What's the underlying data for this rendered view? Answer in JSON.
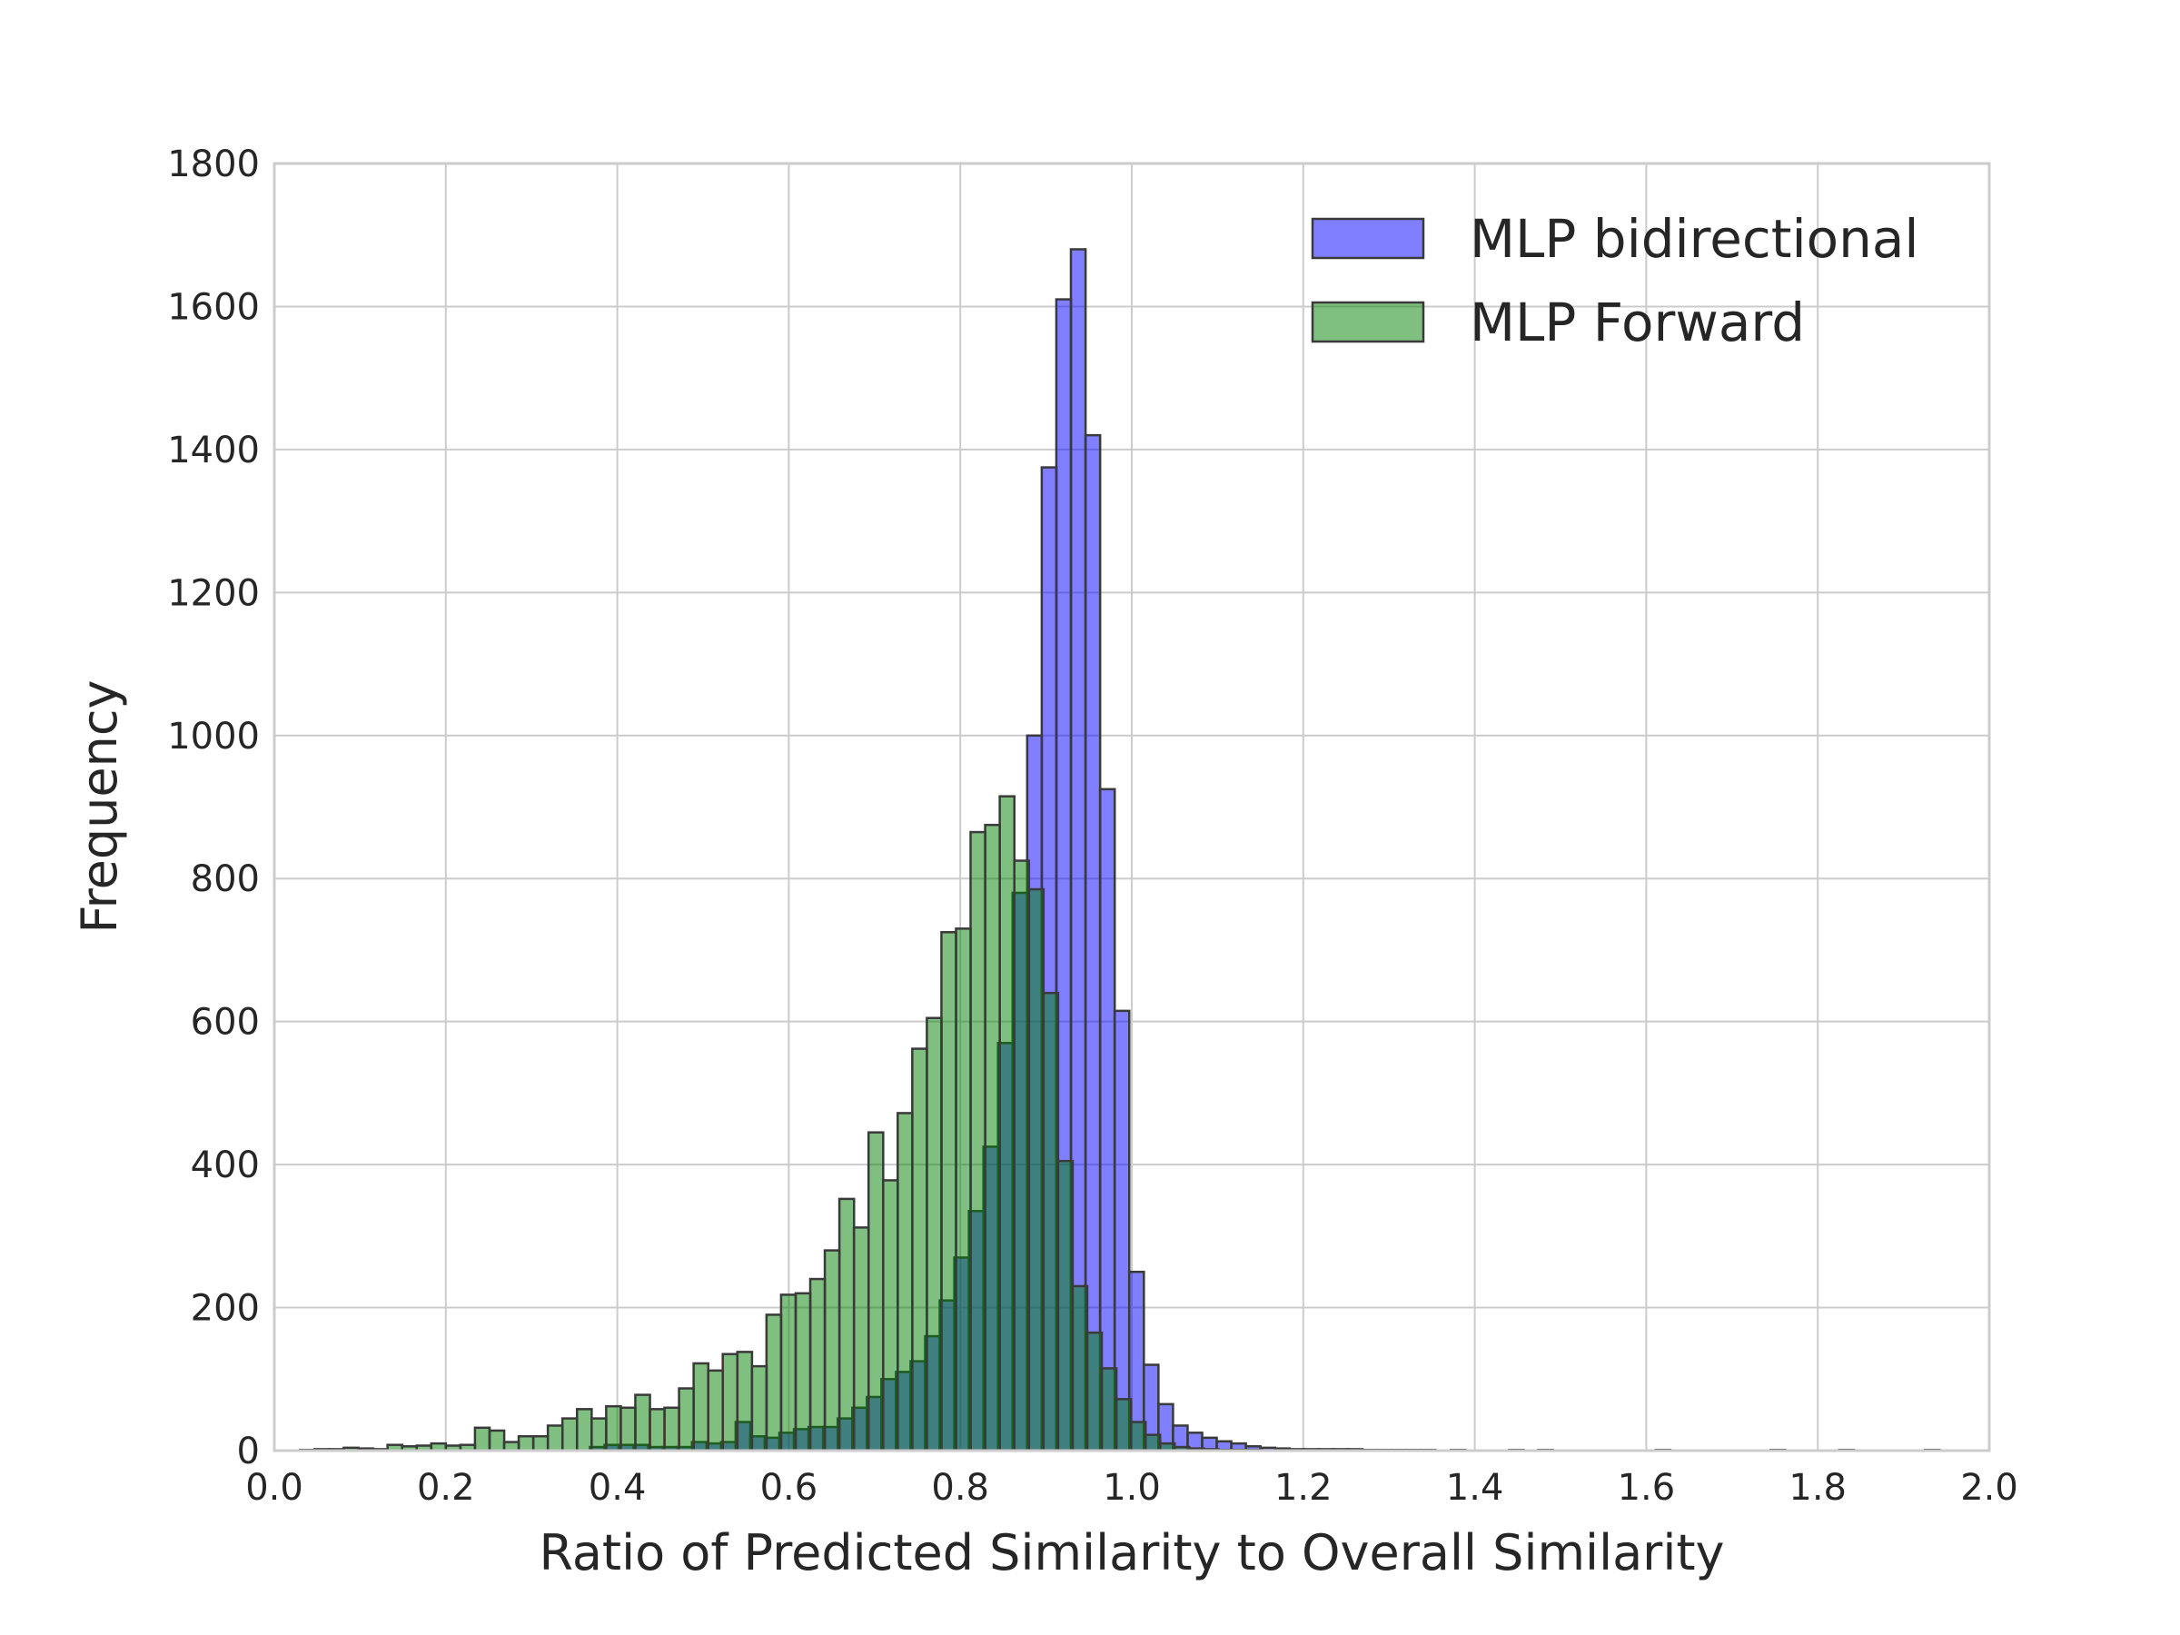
{
  "chart_data": {
    "type": "bar",
    "subtype": "overlaid-histogram",
    "title": "",
    "xlabel": "Ratio of Predicted Similarity to Overall Similarity",
    "ylabel": "Frequency",
    "xlim": [
      0.0,
      2.0
    ],
    "ylim": [
      0,
      1800
    ],
    "grid": true,
    "legend_position": "top-right",
    "bin_width": 0.0171,
    "x_ticks": [
      "0.0",
      "0.2",
      "0.4",
      "0.6",
      "0.8",
      "1.0",
      "1.2",
      "1.4",
      "1.6",
      "1.8",
      "2.0"
    ],
    "y_ticks": [
      "0",
      "200",
      "400",
      "600",
      "800",
      "1000",
      "1200",
      "1400",
      "1600",
      "1800"
    ],
    "series": [
      {
        "name": "MLP bidirectional",
        "color": "#0000ff",
        "opacity": 0.5,
        "bins": [
          [
            0.368,
            5
          ],
          [
            0.385,
            8
          ],
          [
            0.402,
            8
          ],
          [
            0.419,
            8
          ],
          [
            0.436,
            5
          ],
          [
            0.453,
            5
          ],
          [
            0.47,
            5
          ],
          [
            0.487,
            12
          ],
          [
            0.504,
            10
          ],
          [
            0.521,
            12
          ],
          [
            0.538,
            40
          ],
          [
            0.555,
            20
          ],
          [
            0.572,
            18
          ],
          [
            0.589,
            25
          ],
          [
            0.606,
            30
          ],
          [
            0.623,
            33
          ],
          [
            0.64,
            33
          ],
          [
            0.657,
            45
          ],
          [
            0.674,
            60
          ],
          [
            0.691,
            75
          ],
          [
            0.708,
            100
          ],
          [
            0.725,
            110
          ],
          [
            0.742,
            125
          ],
          [
            0.759,
            160
          ],
          [
            0.776,
            210
          ],
          [
            0.793,
            270
          ],
          [
            0.81,
            335
          ],
          [
            0.827,
            425
          ],
          [
            0.844,
            570
          ],
          [
            0.861,
            780
          ],
          [
            0.878,
            1000
          ],
          [
            0.895,
            1375
          ],
          [
            0.912,
            1610
          ],
          [
            0.929,
            1680
          ],
          [
            0.946,
            1420
          ],
          [
            0.963,
            925
          ],
          [
            0.98,
            615
          ],
          [
            0.997,
            250
          ],
          [
            1.014,
            120
          ],
          [
            1.031,
            65
          ],
          [
            1.048,
            35
          ],
          [
            1.065,
            25
          ],
          [
            1.082,
            18
          ],
          [
            1.099,
            13
          ],
          [
            1.116,
            10
          ],
          [
            1.133,
            6
          ],
          [
            1.15,
            4
          ],
          [
            1.167,
            3
          ],
          [
            1.184,
            2
          ],
          [
            1.201,
            2
          ],
          [
            1.218,
            2
          ],
          [
            1.235,
            2
          ],
          [
            1.252,
            2
          ],
          [
            1.269,
            1
          ],
          [
            1.286,
            1
          ],
          [
            1.303,
            1
          ],
          [
            1.32,
            1
          ],
          [
            1.337,
            1
          ],
          [
            1.372,
            1
          ],
          [
            1.44,
            1
          ],
          [
            1.474,
            1
          ],
          [
            1.611,
            1
          ],
          [
            1.745,
            1
          ],
          [
            1.825,
            1
          ],
          [
            1.925,
            1
          ]
        ]
      },
      {
        "name": "MLP Forward",
        "color": "#008000",
        "opacity": 0.5,
        "bins": [
          [
            0.03,
            1
          ],
          [
            0.047,
            2
          ],
          [
            0.064,
            2
          ],
          [
            0.081,
            4
          ],
          [
            0.098,
            3
          ],
          [
            0.115,
            2
          ],
          [
            0.132,
            8
          ],
          [
            0.149,
            6
          ],
          [
            0.166,
            7
          ],
          [
            0.183,
            10
          ],
          [
            0.2,
            7
          ],
          [
            0.217,
            8
          ],
          [
            0.234,
            32
          ],
          [
            0.251,
            28
          ],
          [
            0.268,
            12
          ],
          [
            0.285,
            20
          ],
          [
            0.302,
            20
          ],
          [
            0.319,
            35
          ],
          [
            0.336,
            45
          ],
          [
            0.353,
            58
          ],
          [
            0.37,
            45
          ],
          [
            0.387,
            62
          ],
          [
            0.404,
            60
          ],
          [
            0.421,
            78
          ],
          [
            0.438,
            58
          ],
          [
            0.455,
            60
          ],
          [
            0.472,
            87
          ],
          [
            0.489,
            122
          ],
          [
            0.506,
            112
          ],
          [
            0.523,
            135
          ],
          [
            0.54,
            138
          ],
          [
            0.557,
            118
          ],
          [
            0.574,
            190
          ],
          [
            0.591,
            218
          ],
          [
            0.608,
            220
          ],
          [
            0.625,
            240
          ],
          [
            0.642,
            280
          ],
          [
            0.659,
            352
          ],
          [
            0.676,
            312
          ],
          [
            0.693,
            445
          ],
          [
            0.71,
            378
          ],
          [
            0.727,
            472
          ],
          [
            0.744,
            562
          ],
          [
            0.761,
            605
          ],
          [
            0.778,
            725
          ],
          [
            0.795,
            730
          ],
          [
            0.812,
            865
          ],
          [
            0.829,
            875
          ],
          [
            0.846,
            915
          ],
          [
            0.863,
            825
          ],
          [
            0.88,
            785
          ],
          [
            0.897,
            640
          ],
          [
            0.914,
            405
          ],
          [
            0.931,
            230
          ],
          [
            0.948,
            165
          ],
          [
            0.965,
            115
          ],
          [
            0.982,
            72
          ],
          [
            0.999,
            40
          ],
          [
            1.016,
            22
          ],
          [
            1.033,
            10
          ],
          [
            1.05,
            5
          ],
          [
            1.067,
            3
          ],
          [
            1.084,
            2
          ],
          [
            1.101,
            1
          ],
          [
            1.118,
            1
          ],
          [
            1.135,
            1
          ]
        ]
      }
    ]
  }
}
